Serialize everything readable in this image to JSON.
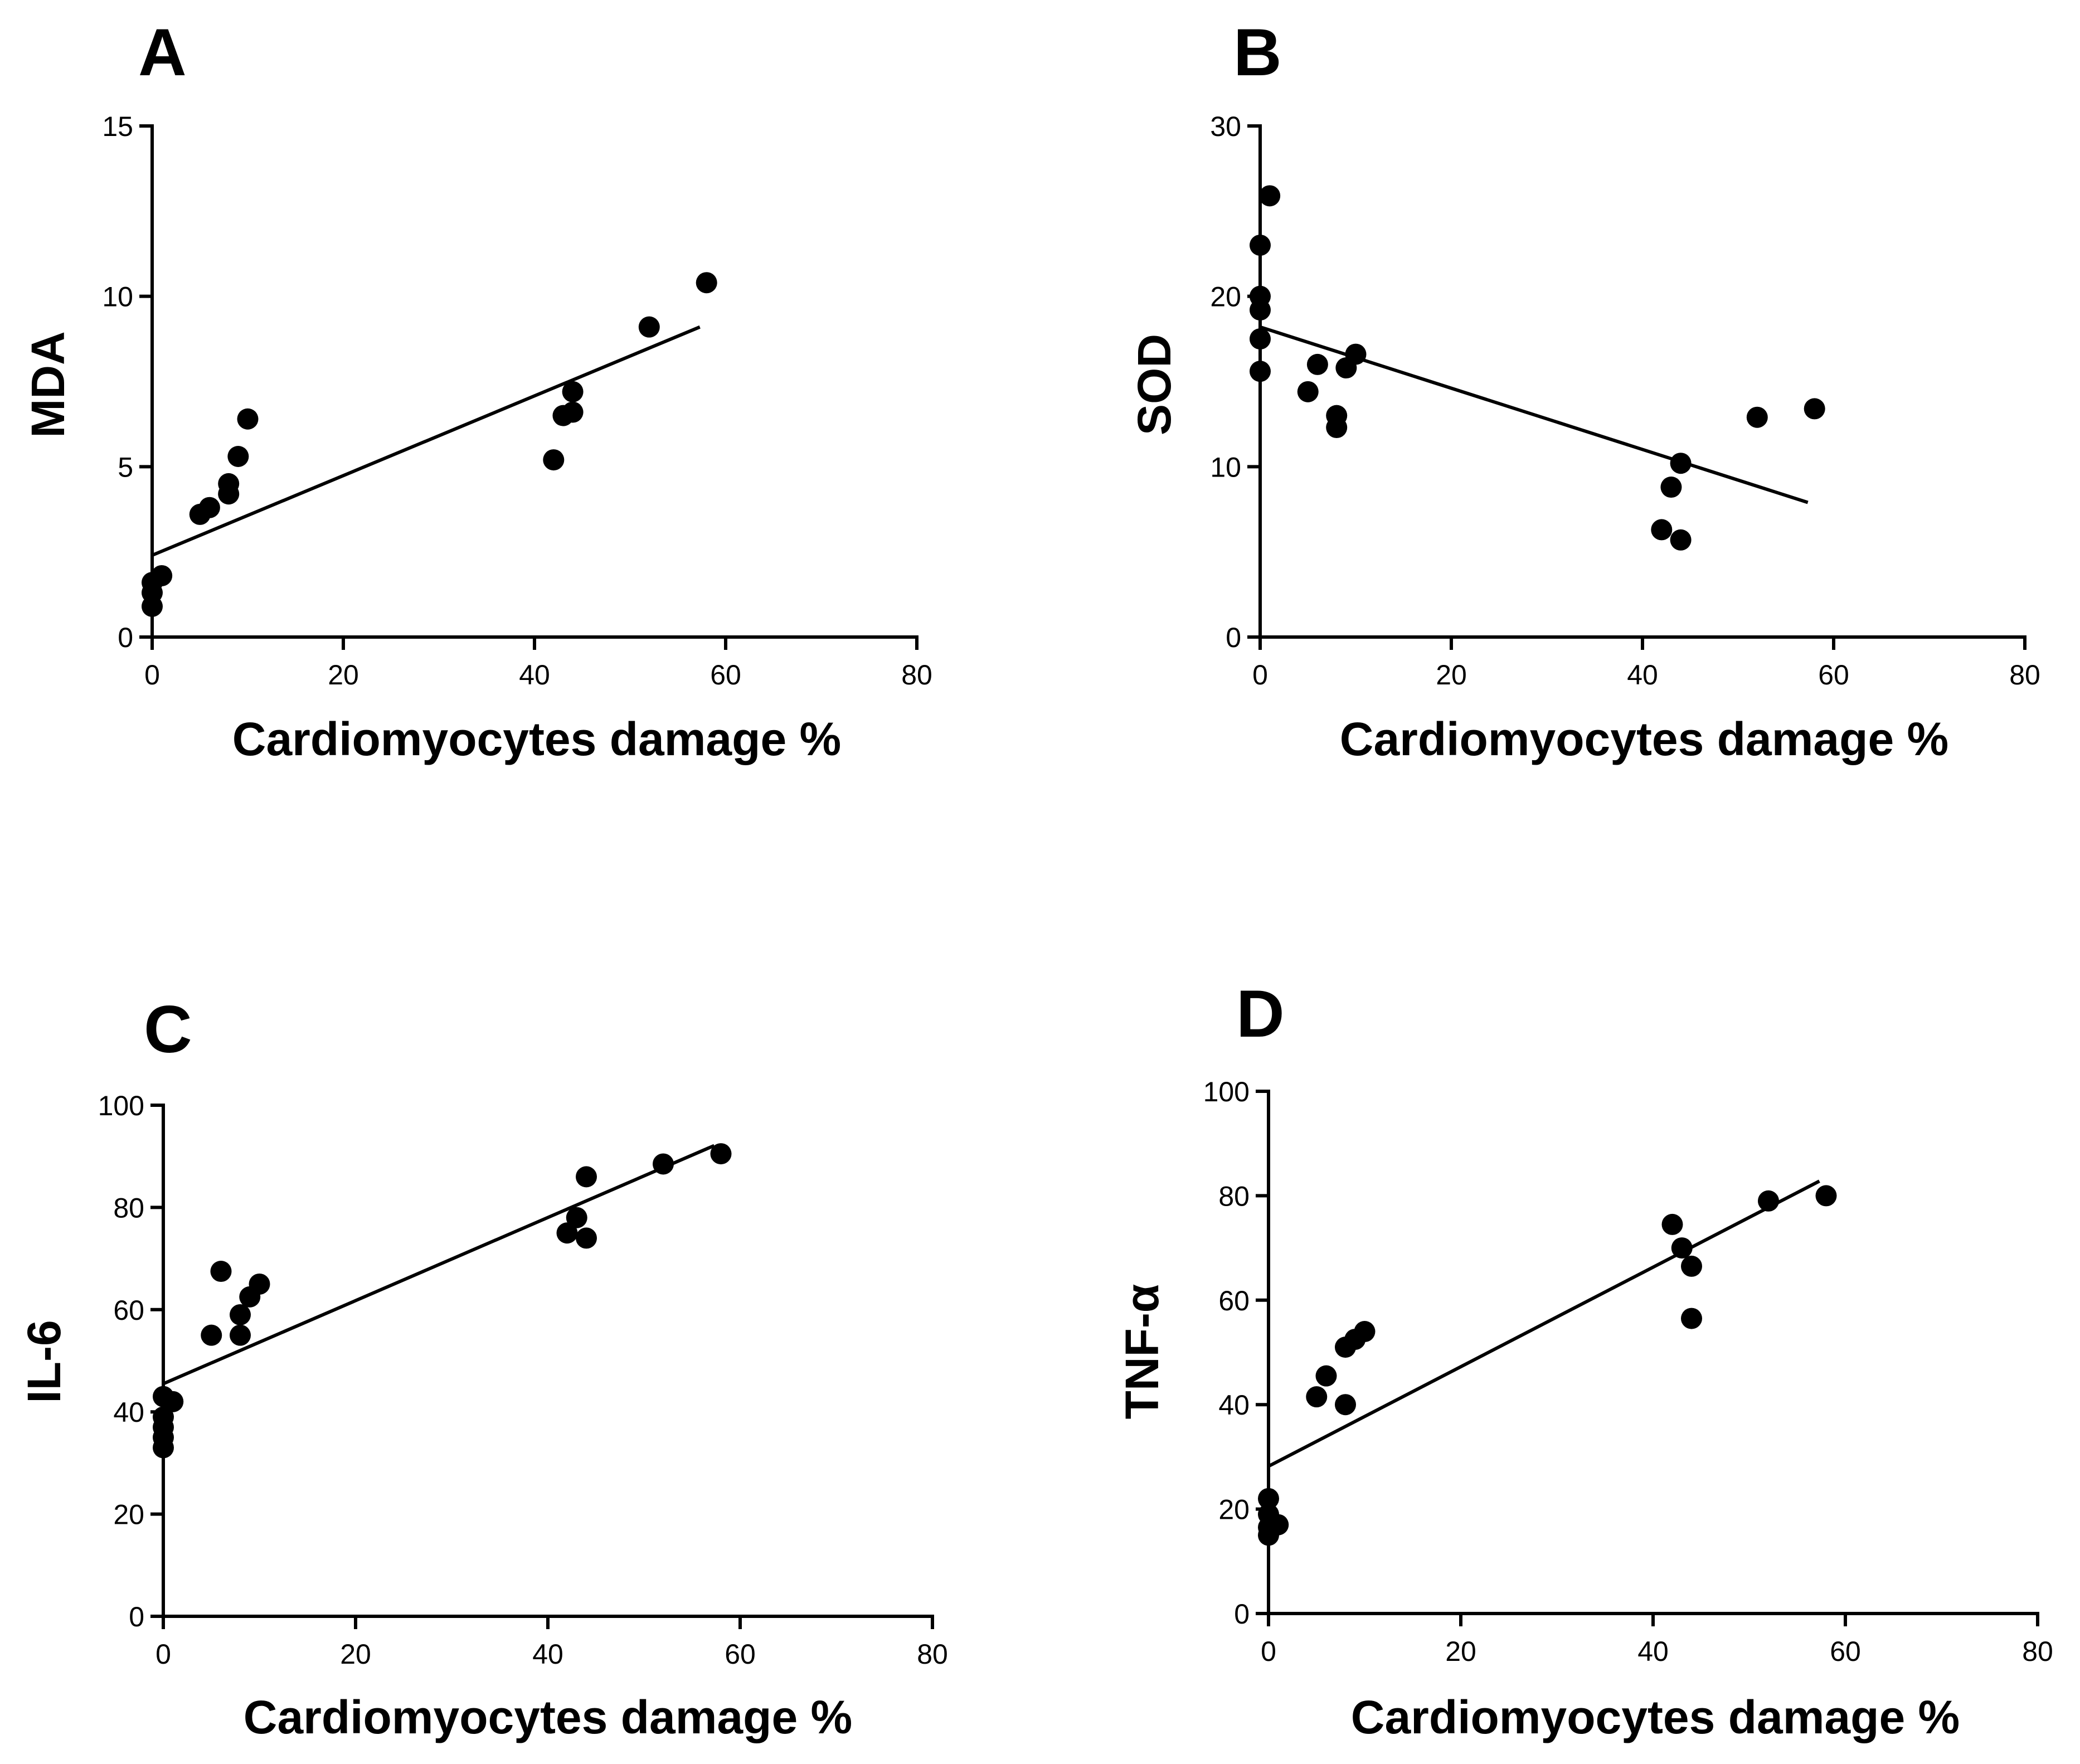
{
  "figure": {
    "background": "#ffffff",
    "ink_color": "#000000"
  },
  "chart_data": [
    {
      "type": "scatter",
      "panel": "A",
      "title": "",
      "xlabel": "Cardiomyocytes damage %",
      "ylabel": "MDA",
      "xlim": [
        0,
        80
      ],
      "ylim": [
        0,
        15
      ],
      "x_ticks": [
        "0",
        "20",
        "40",
        "60",
        "80"
      ],
      "y_ticks": [
        "0",
        "5",
        "10",
        "15"
      ],
      "grid": false,
      "points": {
        "x": [
          0,
          0,
          0,
          1,
          5,
          6,
          8,
          8,
          9,
          10,
          42,
          43,
          44,
          44,
          52,
          58
        ],
        "y": [
          0.9,
          1.3,
          1.6,
          1.8,
          3.6,
          3.8,
          4.2,
          4.5,
          5.3,
          6.4,
          5.2,
          6.5,
          6.6,
          7.2,
          9.1,
          10.4
        ]
      },
      "regression_line": {
        "x": [
          0,
          57.3
        ],
        "y": [
          2.4,
          9.1
        ]
      }
    },
    {
      "type": "scatter",
      "panel": "B",
      "title": "",
      "xlabel": "Cardiomyocytes damage %",
      "ylabel": "SOD",
      "xlim": [
        0,
        80
      ],
      "ylim": [
        0,
        30
      ],
      "x_ticks": [
        "0",
        "20",
        "40",
        "60",
        "80"
      ],
      "y_ticks": [
        "0",
        "10",
        "20",
        "30"
      ],
      "grid": false,
      "points": {
        "x": [
          0,
          0,
          0,
          0,
          0,
          1,
          5,
          6,
          8,
          8,
          9,
          10,
          42,
          43,
          44,
          44,
          52,
          58
        ],
        "y": [
          15.6,
          17.5,
          19.2,
          20.0,
          23.0,
          25.9,
          14.4,
          16.0,
          12.3,
          13.0,
          15.8,
          16.6,
          6.3,
          8.8,
          10.2,
          5.7,
          12.9,
          13.4
        ]
      },
      "regression_line": {
        "x": [
          0,
          57.3
        ],
        "y": [
          18.2,
          7.9
        ]
      }
    },
    {
      "type": "scatter",
      "panel": "C",
      "title": "",
      "xlabel": "Cardiomyocytes damage %",
      "ylabel": "IL-6",
      "xlim": [
        0,
        80
      ],
      "ylim": [
        0,
        100
      ],
      "x_ticks": [
        "0",
        "20",
        "40",
        "60",
        "80"
      ],
      "y_ticks": [
        "0",
        "20",
        "40",
        "60",
        "80",
        "100"
      ],
      "grid": false,
      "points": {
        "x": [
          0,
          0,
          0,
          0,
          0,
          1,
          5,
          6,
          8,
          8,
          9,
          10,
          42,
          43,
          44,
          44,
          52,
          58
        ],
        "y": [
          33,
          35,
          37,
          39,
          43,
          42,
          55,
          67.5,
          55,
          59,
          62.5,
          65,
          75,
          78,
          74,
          86,
          88.5,
          90.5
        ]
      },
      "regression_line": {
        "x": [
          0,
          57.3
        ],
        "y": [
          45.5,
          92.1
        ]
      }
    },
    {
      "type": "scatter",
      "panel": "D",
      "title": "",
      "xlabel": "Cardiomyocytes damage %",
      "ylabel": "TNF-α",
      "xlim": [
        0,
        80
      ],
      "ylim": [
        0,
        100
      ],
      "x_ticks": [
        "0",
        "20",
        "40",
        "60",
        "80"
      ],
      "y_ticks": [
        "0",
        "20",
        "40",
        "60",
        "80",
        "100"
      ],
      "grid": false,
      "points": {
        "x": [
          0,
          0,
          0,
          0,
          1,
          5,
          6,
          8,
          8,
          9,
          10,
          42,
          43,
          44,
          44,
          52,
          58
        ],
        "y": [
          15,
          16.5,
          19,
          22,
          17,
          41.5,
          45.5,
          40,
          51,
          52.5,
          54,
          74.5,
          70,
          66.5,
          56.5,
          79,
          80
        ]
      },
      "regression_line": {
        "x": [
          0,
          57.3
        ],
        "y": [
          28.2,
          82.8
        ]
      }
    }
  ]
}
